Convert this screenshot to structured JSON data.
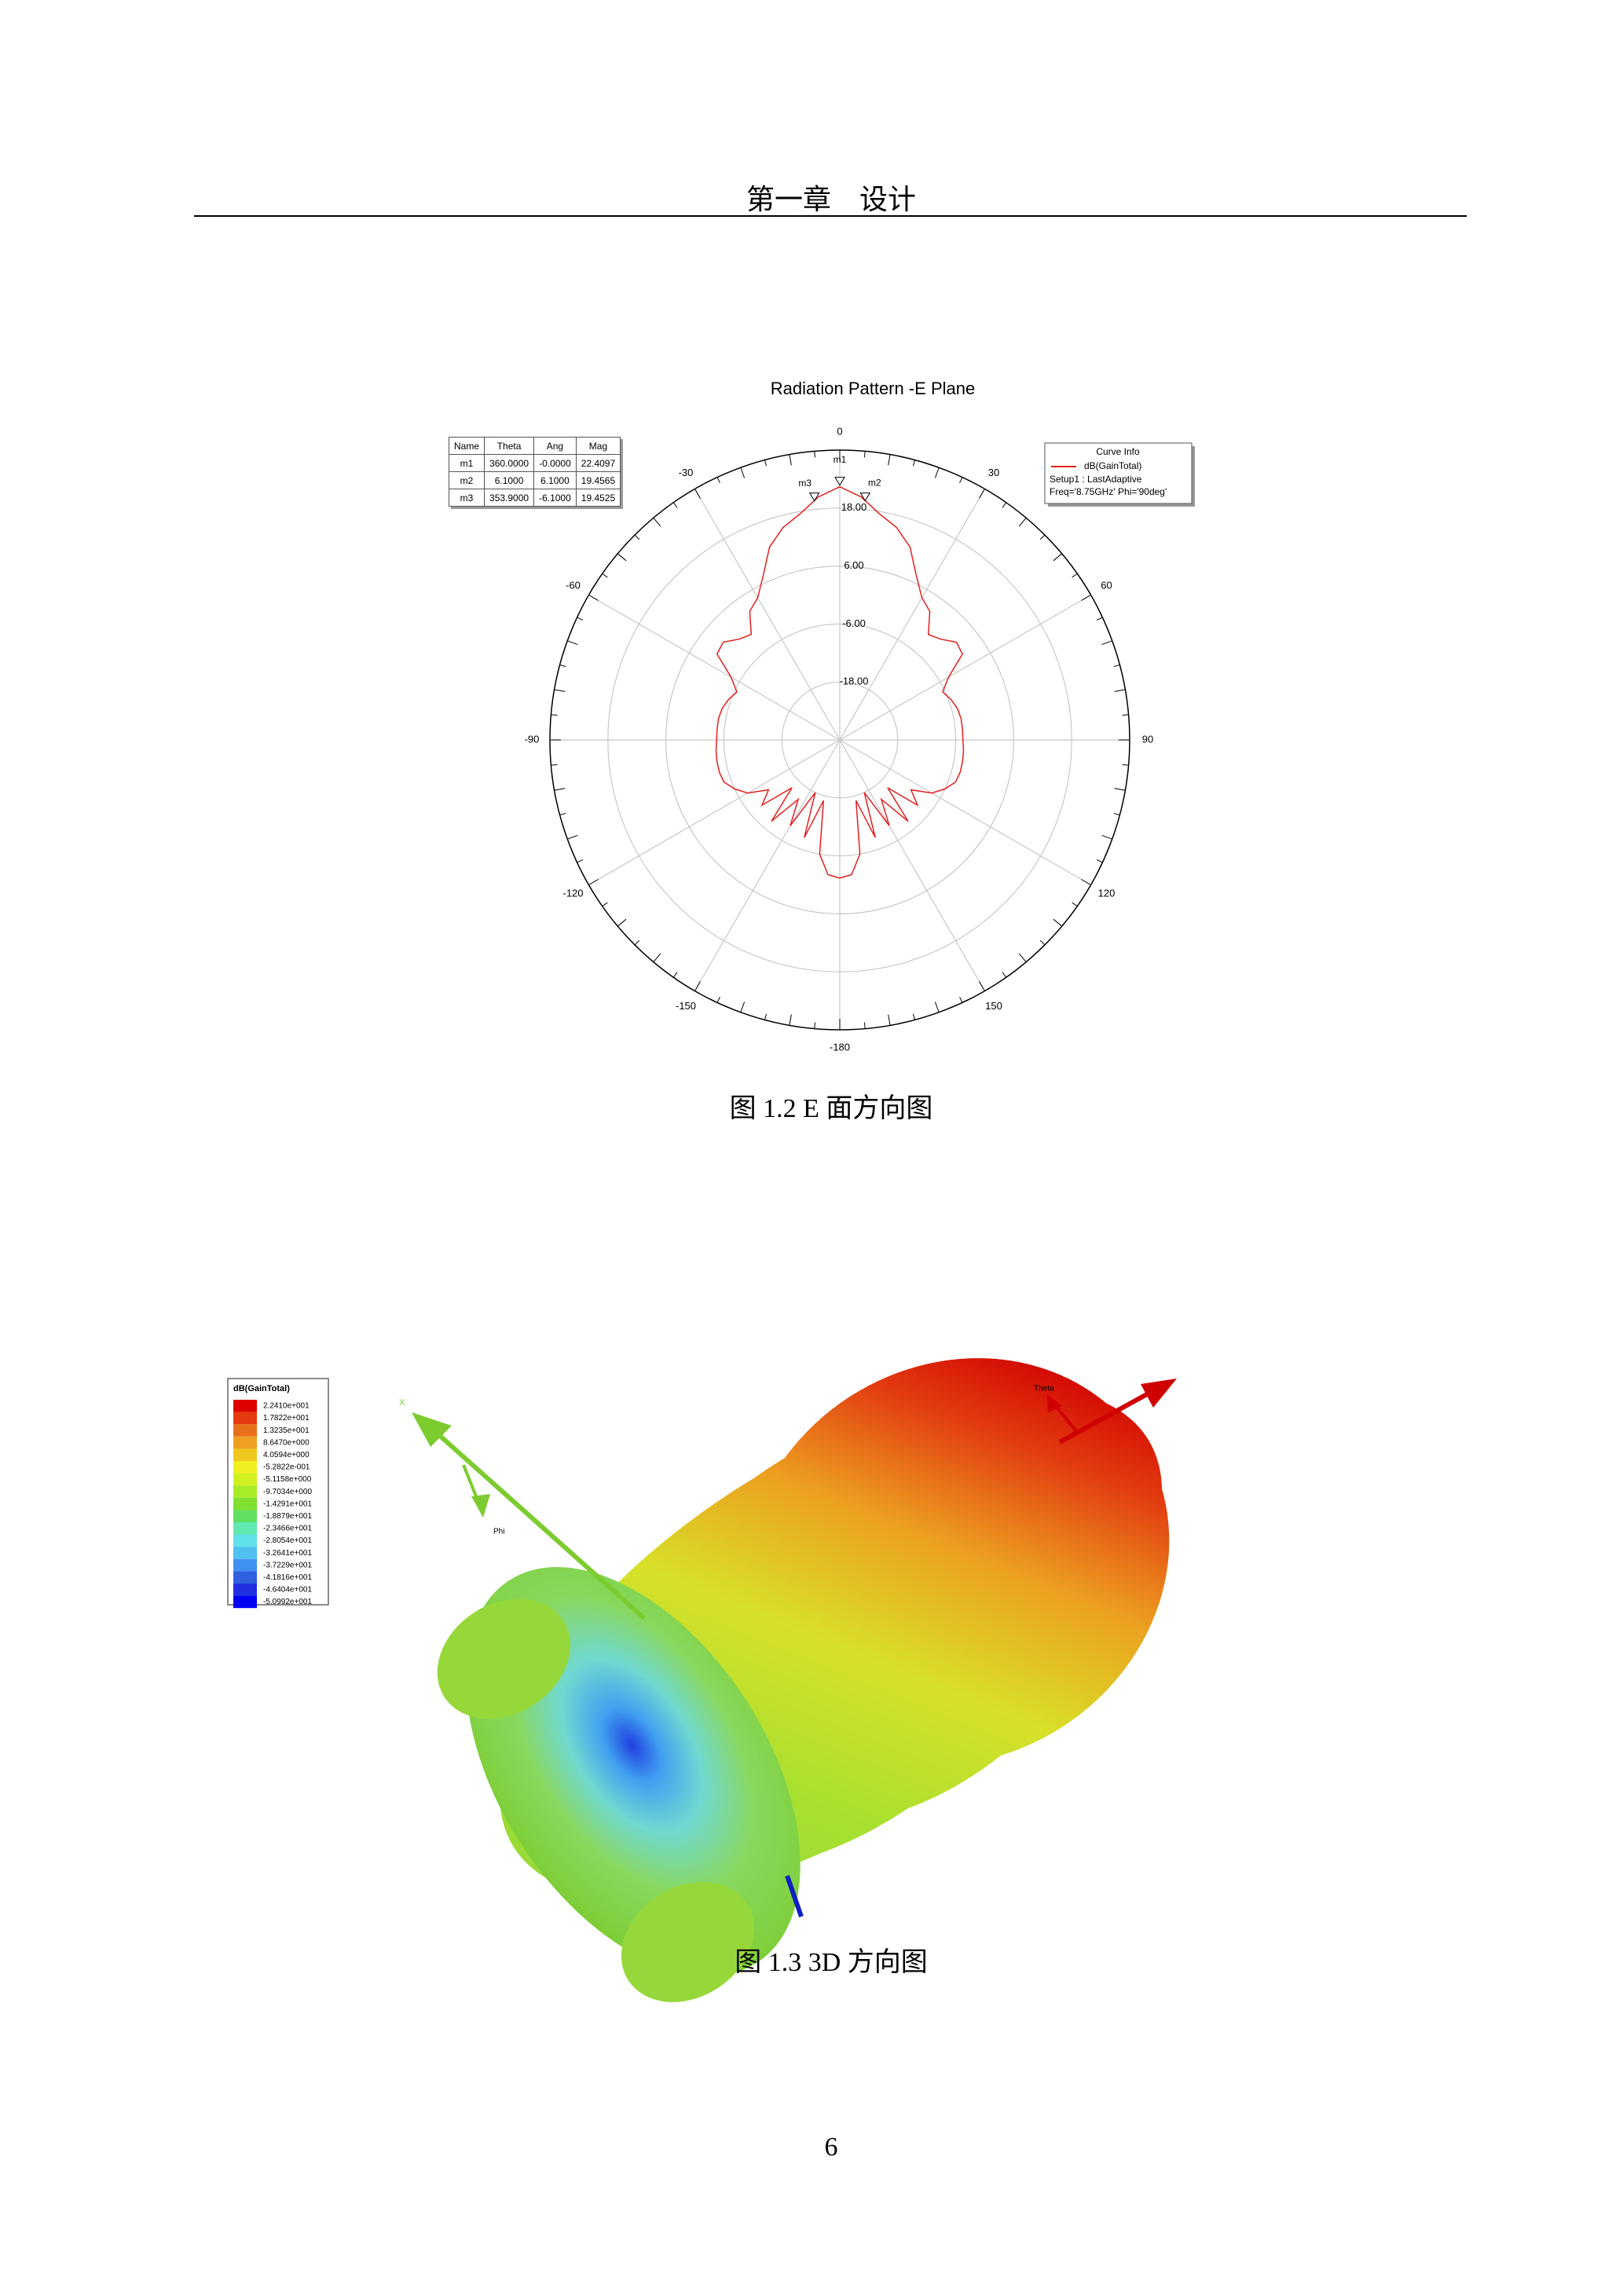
{
  "header": {
    "title": "第一章　设计"
  },
  "figure_1": {
    "caption": "图  1.2  E 面方向图",
    "chart": {
      "type": "polar",
      "title": "Radiation Pattern -E Plane",
      "series_name": "dB(GainTotal)",
      "color": "#e02020",
      "theta": [
        -180,
        -175,
        -170,
        -165,
        -160,
        -155,
        -150,
        -145,
        -140,
        -135,
        -130,
        -125,
        -120,
        -115,
        -110,
        -105,
        -100,
        -95,
        -90,
        -85,
        -80,
        -75,
        -70,
        -65,
        -60,
        -55,
        -50,
        -45,
        -40,
        -35,
        -30,
        -25,
        -20,
        -15,
        -10,
        -5,
        0,
        5,
        10,
        15,
        20,
        25,
        30,
        35,
        40,
        45,
        50,
        55,
        60,
        65,
        70,
        75,
        80,
        85,
        90,
        95,
        100,
        105,
        110,
        115,
        120,
        125,
        130,
        135,
        140,
        145,
        150,
        155,
        160,
        165,
        170,
        175,
        180
      ],
      "values": [
        -1.4,
        -2,
        -6,
        -17,
        -8.5,
        -18,
        -9.5,
        -15,
        -8,
        -16,
        -9,
        -12,
        -8.0,
        -6.0,
        -4.5,
        -4.2,
        -4.2,
        -4.3,
        -4.5,
        -4.5,
        -4.5,
        -4.8,
        -5.5,
        -6.5,
        -4.0,
        1.0,
        1.5,
        -0.5,
        -1.5,
        2.5,
        4.0,
        7.5,
        12.5,
        15.5,
        17.5,
        20.5,
        22.4,
        20.5,
        17.5,
        15.5,
        12.5,
        7.5,
        4.0,
        2.5,
        -1.5,
        -0.5,
        1.5,
        1.0,
        -4.0,
        -6.5,
        -5.5,
        -4.8,
        -4.5,
        -4.5,
        -4.5,
        -4.3,
        -4.2,
        -4.2,
        -4.5,
        -6.0,
        -8.0,
        -12,
        -9,
        -16,
        -8,
        -15,
        -9.5,
        -18,
        -8.5,
        -17,
        -6,
        -2,
        -1.4
      ],
      "rlim": [
        -30,
        30
      ],
      "rticks": [
        {
          "value": 18,
          "label": "18.00"
        },
        {
          "value": 6,
          "label": "6.00"
        },
        {
          "value": -6,
          "label": "-6.00"
        },
        {
          "value": -18,
          "label": "-18.00"
        }
      ],
      "angle_ticks": [
        0,
        30,
        60,
        90,
        120,
        150,
        -180,
        -150,
        -120,
        -90,
        -60,
        -30
      ],
      "markers": {
        "columns": [
          "Name",
          "Theta",
          "Ang",
          "Mag"
        ],
        "rows": [
          [
            "m1",
            "360.0000",
            "-0.0000",
            "22.4097"
          ],
          [
            "m2",
            "6.1000",
            "6.1000",
            "19.4565"
          ],
          [
            "m3",
            "353.9000",
            "-6.1000",
            "19.4525"
          ]
        ]
      },
      "curve_info": {
        "title": "Curve Info",
        "setup": "Setup1 : LastAdaptive",
        "freq": "Freq='8.75GHz' Phi='90deg'"
      }
    }
  },
  "figure_2": {
    "caption": "图  1.3  3D 方向图",
    "legend": {
      "title": "dB(GainTotal)",
      "labels": [
        "2.2410e+001",
        "1.7822e+001",
        "1.3235e+001",
        "8.6470e+000",
        "4.0594e+000",
        "-5.2822e-001",
        "-5.1158e+000",
        "-9.7034e+000",
        "-1.4291e+001",
        "-1.8879e+001",
        "-2.3466e+001",
        "-2.8054e+001",
        "-3.2641e+001",
        "-3.7229e+001",
        "-4.1816e+001",
        "-4.6404e+001",
        "-5.0992e+001"
      ],
      "colors": [
        "#e00000",
        "#e63a10",
        "#e8701a",
        "#eea020",
        "#f0c820",
        "#f0f020",
        "#d0f020",
        "#a8ec28",
        "#80e030",
        "#60e060",
        "#60e8b0",
        "#60e0e8",
        "#50c0f0",
        "#4090f0",
        "#3060e0",
        "#2030e0",
        "#0000f0"
      ]
    },
    "axis_labels": {
      "x": "X",
      "theta": "Theta",
      "phi": "Phi"
    }
  },
  "page_number": "6"
}
